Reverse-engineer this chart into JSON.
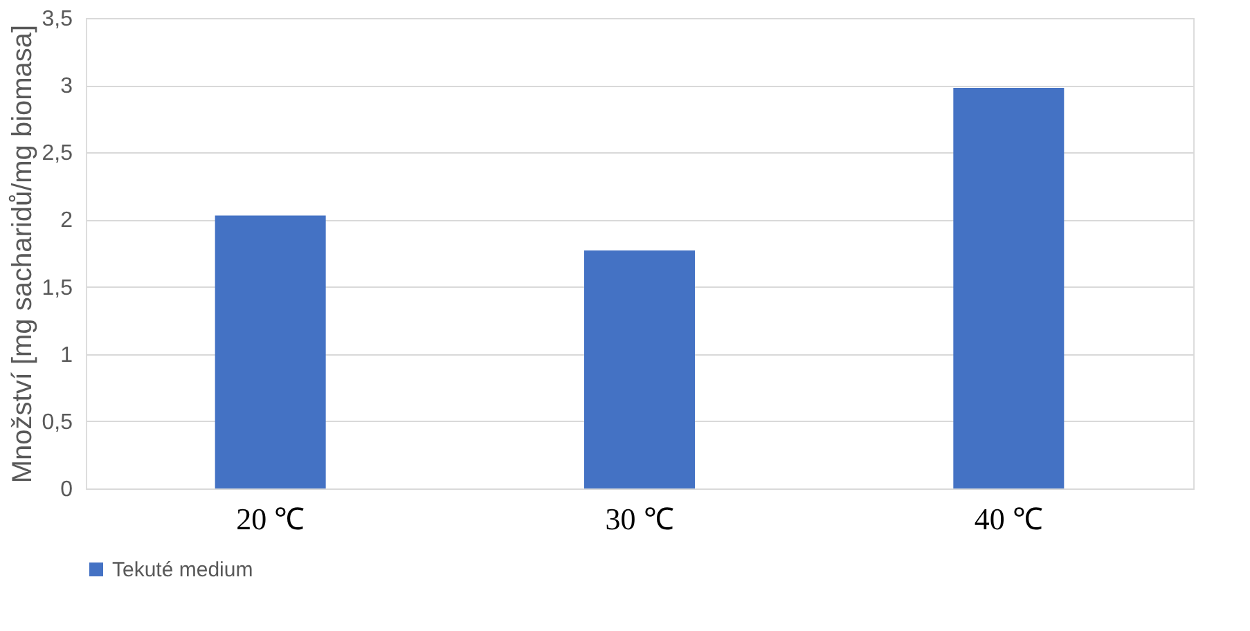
{
  "chart_data": {
    "type": "bar",
    "ylabel": "Množství [mg sacharidů/mg biomasa]",
    "categories": [
      "20 ℃",
      "30 ℃",
      "40 ℃"
    ],
    "series": [
      {
        "name": "Tekuté medium",
        "color": "#4472c4",
        "values": [
          2.03,
          1.77,
          2.98
        ]
      }
    ],
    "ylim": [
      0,
      3.5
    ],
    "yticks": [
      0,
      {
        "value": 0.5,
        "label": "0,5"
      },
      1,
      {
        "value": 1.5,
        "label": "1,5"
      },
      2,
      {
        "value": 2.5,
        "label": "2,5"
      },
      3,
      {
        "value": 3.5,
        "label": "3,5"
      }
    ],
    "grid": "y",
    "legend": "bottom"
  }
}
